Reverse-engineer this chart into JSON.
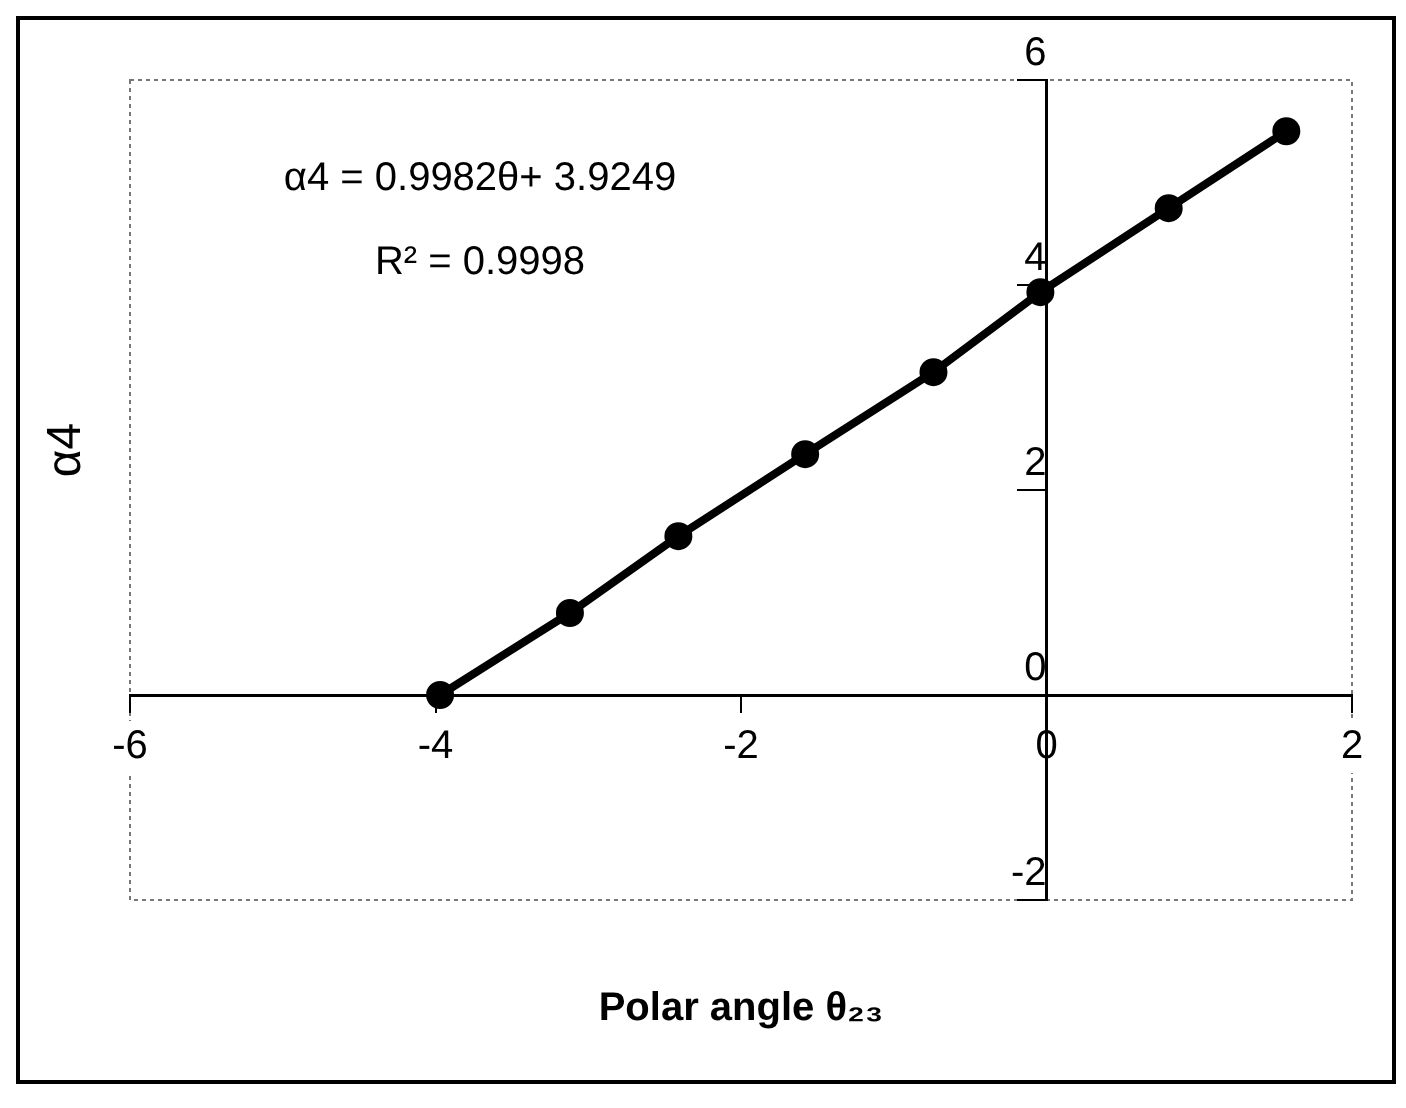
{
  "chart_data": {
    "type": "line",
    "xlabel": "Polar angle θ₂₃",
    "ylabel": "α4",
    "annotations": [
      "α4 = 0.9982θ+ 3.9249",
      "R² = 0.9998"
    ],
    "series": [
      {
        "color": "#000000",
        "x": [
          -3.97,
          -3.12,
          -2.41,
          -1.58,
          -0.74,
          -0.04,
          0.8,
          1.57
        ],
        "values": [
          0,
          0.8,
          1.55,
          2.35,
          3.15,
          3.93,
          4.75,
          5.5
        ]
      }
    ],
    "xlim": [
      -6,
      2
    ],
    "xticks": [
      -6,
      -4,
      -2,
      0,
      2
    ],
    "ylim": [
      -2,
      6
    ],
    "yticks": [
      -2,
      0,
      2,
      4,
      6
    ],
    "grid": false,
    "legend": false,
    "marker": "circle",
    "line_style": "solid"
  }
}
